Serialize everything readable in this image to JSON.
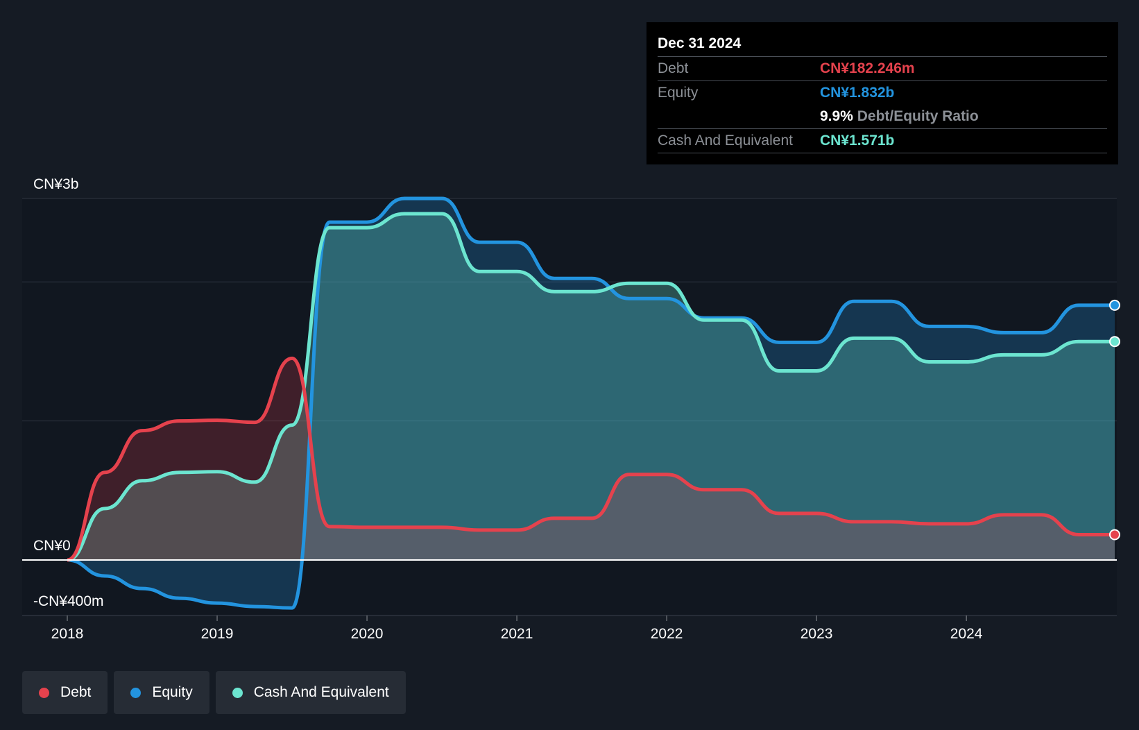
{
  "tooltip": {
    "date": "Dec 31 2024",
    "debt_label": "Debt",
    "debt_value": "CN¥182.246m",
    "equity_label": "Equity",
    "equity_value": "CN¥1.832b",
    "ratio_value": "9.9%",
    "ratio_label": "Debt/Equity Ratio",
    "cash_label": "Cash And Equivalent",
    "cash_value": "CN¥1.571b"
  },
  "legend": {
    "debt": "Debt",
    "equity": "Equity",
    "cash": "Cash And Equivalent"
  },
  "colors": {
    "debt": "#e5424d",
    "equity": "#2394df",
    "cash": "#6ce5d0",
    "background": "#151b24",
    "plot_background": "#111720"
  },
  "chart_data": {
    "type": "area",
    "y_unit": "CN¥ millions",
    "ylim": [
      -400,
      2600
    ],
    "y_tick_labels": [
      {
        "value": 2600,
        "label": "CN¥3b"
      },
      {
        "value": 0,
        "label": "CN¥0"
      },
      {
        "value": -400,
        "label": "-CN¥400m"
      }
    ],
    "gridlines": [
      2600,
      2000,
      1000
    ],
    "x_ticks": [
      "2018",
      "2019",
      "2020",
      "2021",
      "2022",
      "2023",
      "2024"
    ],
    "xlim": [
      2018.0,
      2024.99
    ],
    "series": [
      {
        "name": "Debt",
        "points": [
          [
            2018.0,
            0
          ],
          [
            2018.25,
            630
          ],
          [
            2018.5,
            930
          ],
          [
            2018.75,
            1000
          ],
          [
            2019.0,
            1005
          ],
          [
            2019.25,
            990
          ],
          [
            2019.5,
            1450
          ],
          [
            2019.75,
            240
          ],
          [
            2020.0,
            235
          ],
          [
            2020.25,
            235
          ],
          [
            2020.5,
            235
          ],
          [
            2020.75,
            215
          ],
          [
            2021.0,
            215
          ],
          [
            2021.25,
            300
          ],
          [
            2021.5,
            300
          ],
          [
            2021.75,
            615
          ],
          [
            2022.0,
            615
          ],
          [
            2022.25,
            505
          ],
          [
            2022.5,
            505
          ],
          [
            2022.75,
            335
          ],
          [
            2023.0,
            335
          ],
          [
            2023.25,
            275
          ],
          [
            2023.5,
            275
          ],
          [
            2023.75,
            260
          ],
          [
            2024.0,
            260
          ],
          [
            2024.25,
            325
          ],
          [
            2024.5,
            325
          ],
          [
            2024.75,
            182
          ],
          [
            2024.99,
            182.246
          ]
        ]
      },
      {
        "name": "Equity",
        "points": [
          [
            2018.0,
            0
          ],
          [
            2018.25,
            -115
          ],
          [
            2018.5,
            -205
          ],
          [
            2018.75,
            -275
          ],
          [
            2019.0,
            -310
          ],
          [
            2019.25,
            -335
          ],
          [
            2019.5,
            -345
          ],
          [
            2019.75,
            2430
          ],
          [
            2020.0,
            2430
          ],
          [
            2020.25,
            2600
          ],
          [
            2020.5,
            2600
          ],
          [
            2020.75,
            2285
          ],
          [
            2021.0,
            2285
          ],
          [
            2021.25,
            2025
          ],
          [
            2021.5,
            2025
          ],
          [
            2021.75,
            1880
          ],
          [
            2022.0,
            1880
          ],
          [
            2022.25,
            1740
          ],
          [
            2022.5,
            1740
          ],
          [
            2022.75,
            1565
          ],
          [
            2023.0,
            1565
          ],
          [
            2023.25,
            1860
          ],
          [
            2023.5,
            1860
          ],
          [
            2023.75,
            1680
          ],
          [
            2024.0,
            1680
          ],
          [
            2024.25,
            1635
          ],
          [
            2024.5,
            1635
          ],
          [
            2024.75,
            1832
          ],
          [
            2024.99,
            1832
          ]
        ]
      },
      {
        "name": "Cash And Equivalent",
        "points": [
          [
            2018.0,
            0
          ],
          [
            2018.25,
            370
          ],
          [
            2018.5,
            570
          ],
          [
            2018.75,
            630
          ],
          [
            2019.0,
            635
          ],
          [
            2019.25,
            560
          ],
          [
            2019.5,
            970
          ],
          [
            2019.75,
            2390
          ],
          [
            2020.0,
            2390
          ],
          [
            2020.25,
            2490
          ],
          [
            2020.5,
            2490
          ],
          [
            2020.75,
            2075
          ],
          [
            2021.0,
            2075
          ],
          [
            2021.25,
            1930
          ],
          [
            2021.5,
            1930
          ],
          [
            2021.75,
            1990
          ],
          [
            2022.0,
            1990
          ],
          [
            2022.25,
            1725
          ],
          [
            2022.5,
            1725
          ],
          [
            2022.75,
            1360
          ],
          [
            2023.0,
            1360
          ],
          [
            2023.25,
            1595
          ],
          [
            2023.5,
            1595
          ],
          [
            2023.75,
            1425
          ],
          [
            2024.0,
            1425
          ],
          [
            2024.25,
            1475
          ],
          [
            2024.5,
            1475
          ],
          [
            2024.75,
            1571
          ],
          [
            2024.99,
            1571
          ]
        ]
      }
    ]
  }
}
